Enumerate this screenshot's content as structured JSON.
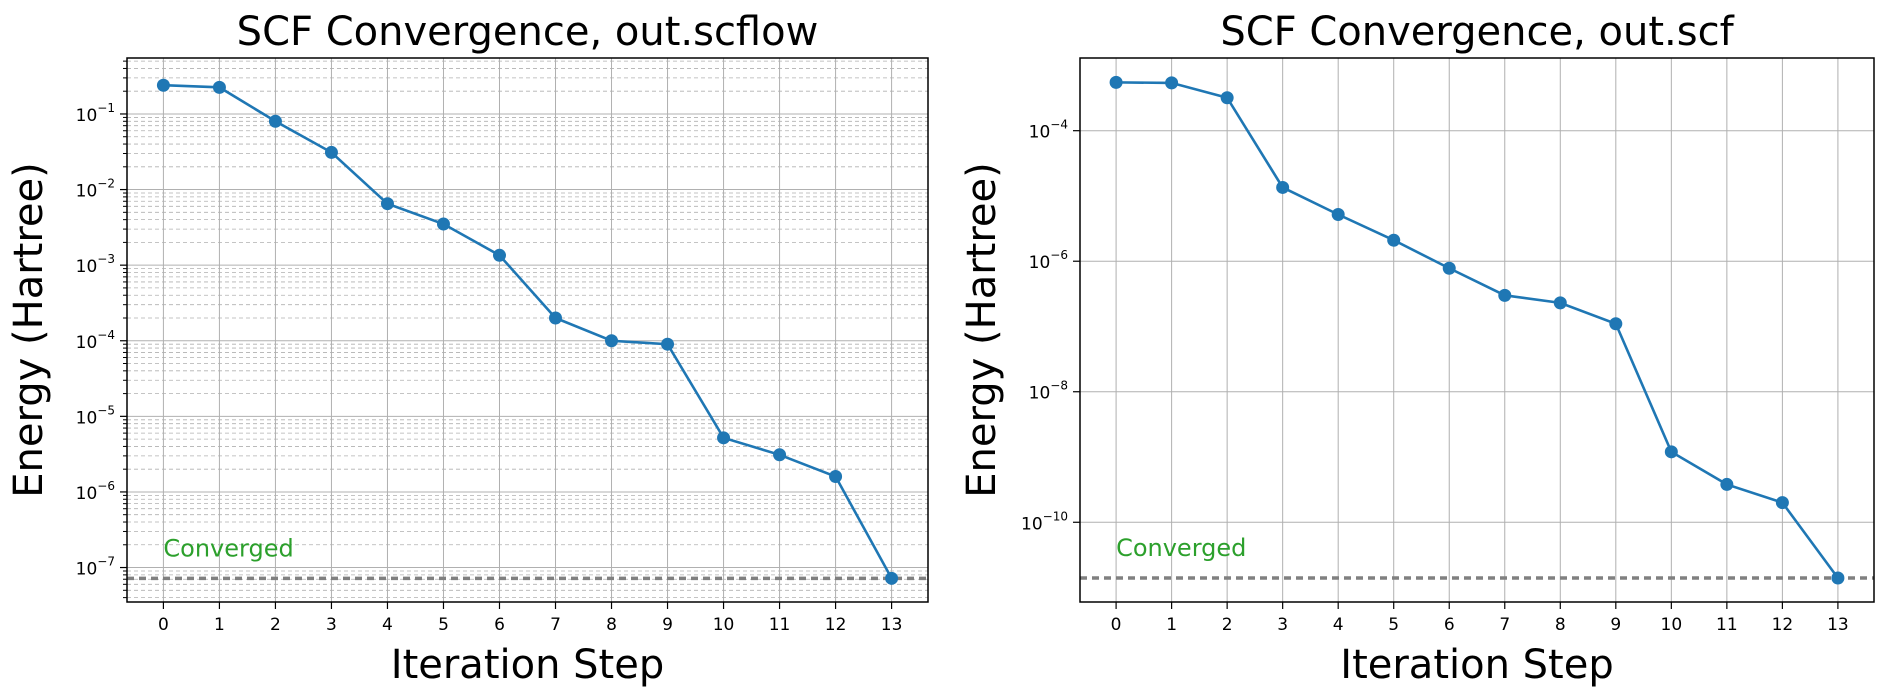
{
  "colors": {
    "series": "#1f77b4",
    "grid": "#b0b0b0",
    "threshold": "#808080",
    "converged_text": "#2ca02c"
  },
  "chart_data": [
    {
      "type": "line",
      "title": "SCF Convergence, out.scflow",
      "xlabel": "Iteration Step",
      "ylabel": "Energy (Hartree)",
      "y_scale": "log",
      "grid": "major and minor",
      "x": [
        0,
        1,
        2,
        3,
        4,
        5,
        6,
        7,
        8,
        9,
        10,
        11,
        12,
        13
      ],
      "y": [
        0.24,
        0.225,
        0.08,
        0.031,
        0.0065,
        0.0035,
        0.00135,
        0.0002,
        0.0001,
        9e-05,
        5.2e-06,
        3.1e-06,
        1.6e-06,
        7.2e-08
      ],
      "xlim": [
        -0.65,
        13.65
      ],
      "ylim": [
        3.5e-08,
        0.55
      ],
      "yticks": [
        1e-07,
        1e-06,
        1e-05,
        0.0001,
        0.001,
        0.01,
        0.1
      ],
      "ytick_labels": [
        {
          "base": "10",
          "exp": "−7"
        },
        {
          "base": "10",
          "exp": "−6"
        },
        {
          "base": "10",
          "exp": "−5"
        },
        {
          "base": "10",
          "exp": "−4"
        },
        {
          "base": "10",
          "exp": "−3"
        },
        {
          "base": "10",
          "exp": "−2"
        },
        {
          "base": "10",
          "exp": "−1"
        }
      ],
      "threshold": 7.2e-08,
      "annotation": "Converged"
    },
    {
      "type": "line",
      "title": "SCF Convergence, out.scf",
      "xlabel": "Iteration Step",
      "ylabel": "Energy (Hartree)",
      "y_scale": "log",
      "grid": "major",
      "x": [
        0,
        1,
        2,
        3,
        4,
        5,
        6,
        7,
        8,
        9,
        10,
        11,
        12,
        13
      ],
      "y": [
        0.00055,
        0.00054,
        0.00032,
        1.35e-05,
        5.2e-06,
        2.1e-06,
        7.8e-07,
        3e-07,
        2.3e-07,
        1.1e-07,
        1.2e-09,
        3.8e-10,
        2e-10,
        1.4e-11
      ],
      "xlim": [
        -0.65,
        13.65
      ],
      "ylim": [
        6e-12,
        0.0013
      ],
      "yticks": [
        1e-10,
        1e-08,
        1e-06,
        0.0001
      ],
      "ytick_labels": [
        {
          "base": "10",
          "exp": "−10"
        },
        {
          "base": "10",
          "exp": "−8"
        },
        {
          "base": "10",
          "exp": "−6"
        },
        {
          "base": "10",
          "exp": "−4"
        }
      ],
      "threshold": 1.4e-11,
      "annotation": "Converged"
    }
  ]
}
